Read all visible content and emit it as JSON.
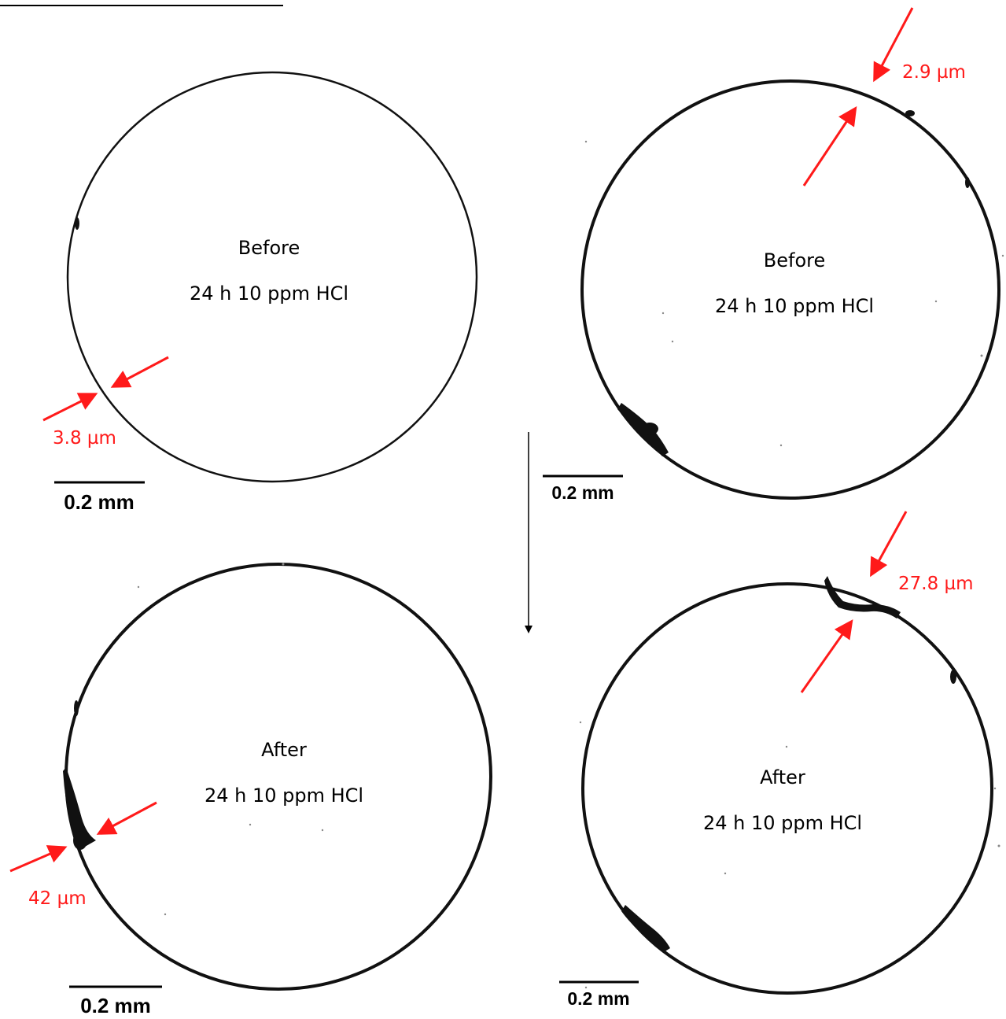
{
  "panels": {
    "top_left": {
      "caption_1": "Before",
      "caption_2": "24 h 10 ppm HCl",
      "measurement": "3.8 µm",
      "scale_bar": "0.2 mm"
    },
    "top_right": {
      "caption_1": "Before",
      "caption_2": "24 h 10 ppm HCl",
      "measurement": "2.9 µm",
      "scale_bar": "0.2 mm"
    },
    "bottom_left": {
      "caption_1": "After",
      "caption_2": "24 h 10 ppm HCl",
      "measurement": "42 µm",
      "scale_bar": "0.2 mm"
    },
    "bottom_right": {
      "caption_1": "After",
      "caption_2": "24 h 10 ppm HCl",
      "measurement": "27.8 µm",
      "scale_bar": "0.2 mm"
    }
  },
  "colors": {
    "annotation": "#ff1a1a",
    "ring": "#111111"
  }
}
